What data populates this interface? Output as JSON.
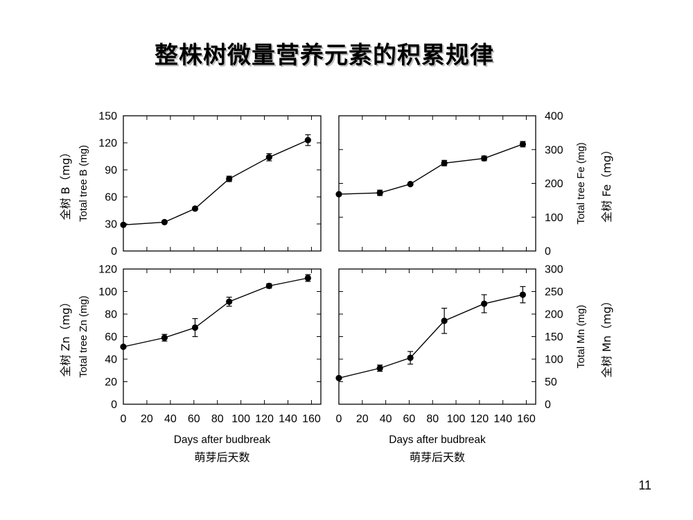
{
  "slide": {
    "title": "整株树微量营养元素的积累规律",
    "page_number": "11"
  },
  "chart_data": [
    {
      "type": "line",
      "ylabel": "Total tree B (mg)",
      "ylabel_cn": "全树 B（mg）",
      "ylim": [
        0,
        150
      ],
      "yticks": [
        0,
        30,
        60,
        90,
        120,
        150
      ],
      "yaxis_side": "left",
      "x": [
        0,
        35,
        61,
        90,
        124,
        157
      ],
      "series": [
        {
          "values": [
            29,
            32,
            47,
            80,
            104,
            123
          ],
          "errors": [
            0,
            0,
            0,
            3,
            4,
            6
          ]
        }
      ]
    },
    {
      "type": "line",
      "ylabel": "Total tree Fe (mg)",
      "ylabel_cn": "全树 Fe（mg）",
      "ylim": [
        0,
        400
      ],
      "yticks": [
        0,
        100,
        200,
        300,
        400
      ],
      "yaxis_side": "right",
      "x": [
        0,
        35,
        61,
        90,
        124,
        157
      ],
      "series": [
        {
          "values": [
            168,
            172,
            198,
            260,
            274,
            316
          ],
          "errors": [
            0,
            8,
            0,
            8,
            7,
            8
          ]
        }
      ]
    },
    {
      "type": "line",
      "ylabel": "Total tree Zn (mg)",
      "ylabel_cn": "全树 Zn（mg）",
      "ylim": [
        0,
        120
      ],
      "yticks": [
        0,
        20,
        40,
        60,
        80,
        100,
        120
      ],
      "yaxis_side": "left",
      "x": [
        0,
        35,
        61,
        90,
        124,
        157
      ],
      "xticks": [
        0,
        20,
        40,
        60,
        80,
        100,
        120,
        140,
        160
      ],
      "xlabel": "Days after budbreak",
      "xlabel_cn": "萌芽后天数",
      "series": [
        {
          "values": [
            51,
            59,
            68,
            91,
            105,
            112
          ],
          "errors": [
            0,
            3,
            8,
            4,
            2,
            3
          ]
        }
      ]
    },
    {
      "type": "line",
      "ylabel": "Total Mn (mg)",
      "ylabel_cn": "全树 Mn（mg）",
      "ylim": [
        0,
        300
      ],
      "yticks": [
        0,
        50,
        100,
        150,
        200,
        250,
        300
      ],
      "yaxis_side": "right",
      "x": [
        0,
        35,
        61,
        90,
        124,
        157
      ],
      "xticks": [
        0,
        20,
        40,
        60,
        80,
        100,
        120,
        140,
        160
      ],
      "xlabel": "Days after budbreak",
      "xlabel_cn": "萌芽后天数",
      "series": [
        {
          "values": [
            58,
            80,
            103,
            185,
            223,
            243
          ],
          "errors": [
            0,
            7,
            14,
            28,
            20,
            18
          ]
        }
      ]
    }
  ]
}
